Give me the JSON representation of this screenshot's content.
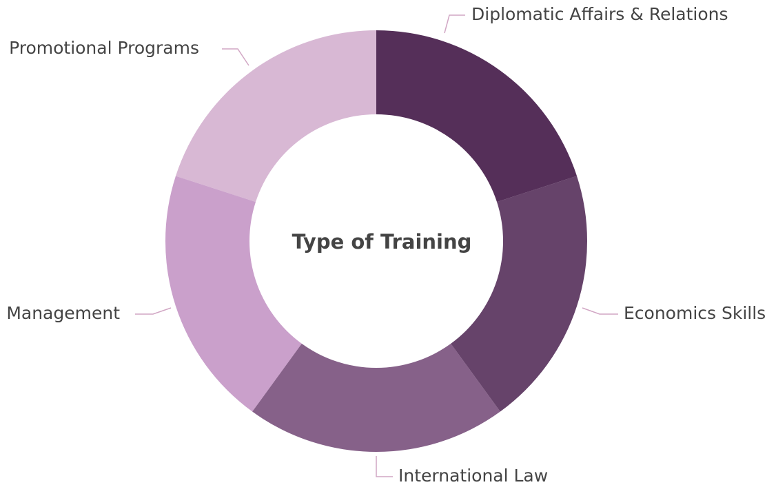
{
  "chart_data": {
    "type": "donut",
    "title": "Type of Training",
    "categories": [
      "Diplomatic Affairs & Relations",
      "Economics Skills",
      "International Law",
      "Management",
      "Promotional Programs"
    ],
    "values": [
      20,
      20,
      20,
      20,
      20
    ],
    "colors": [
      "#552f59",
      "#66436a",
      "#866189",
      "#caa0cb",
      "#d8b8d4"
    ]
  }
}
